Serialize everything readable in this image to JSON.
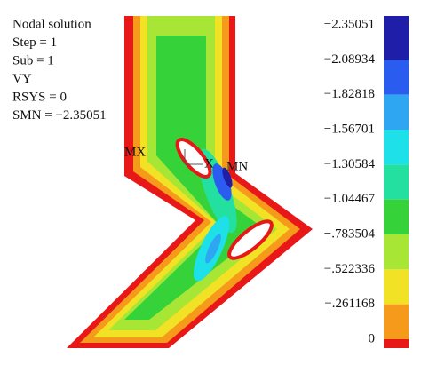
{
  "info": {
    "lines": [
      "Nodal solution",
      "Step = 1",
      "Sub = 1",
      "VY",
      "RSYS = 0",
      "SMN = −2.35051"
    ]
  },
  "markers": {
    "max": "MX",
    "min": "MN",
    "axis": "X"
  },
  "legend": {
    "labels": [
      "−2.35051",
      "−2.08934",
      "−1.82818",
      "−1.56701",
      "−1.30584",
      "−1.04467",
      "−.783504",
      "−.522336",
      "−.261168",
      "0"
    ],
    "colors": [
      "#1e1ea8",
      "#2a5cf0",
      "#2ea6f2",
      "#1ee0e8",
      "#24e0a0",
      "#36d23a",
      "#a8e636",
      "#f2e226",
      "#f59a1a",
      "#e81818"
    ]
  }
}
